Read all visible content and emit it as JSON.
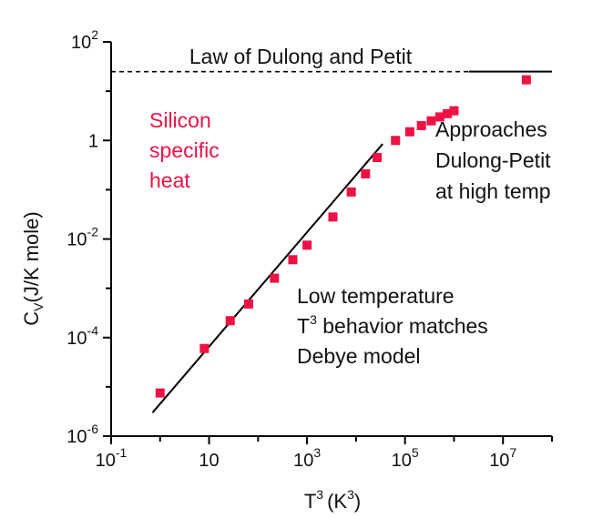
{
  "chart_data": {
    "type": "scatter",
    "x_scale": "log",
    "y_scale": "log",
    "xlim": [
      0.1,
      100000000
    ],
    "ylim": [
      1e-06,
      100
    ],
    "grid": false,
    "xlabel": {
      "base": "T",
      "exp": "3",
      "unit_base": "(K",
      "unit_exp": "3",
      "unit_close": ")"
    },
    "ylabel": {
      "base": "C",
      "sub": "V",
      "rest": "(J/K mole)"
    },
    "x_ticks": [
      {
        "value": 0.1,
        "base": "10",
        "exp": "-1"
      },
      {
        "value": 10,
        "base": "10",
        "exp": ""
      },
      {
        "value": 1000,
        "base": "10",
        "exp": "3"
      },
      {
        "value": 100000,
        "base": "10",
        "exp": "5"
      },
      {
        "value": 10000000,
        "base": "10",
        "exp": "7"
      }
    ],
    "x_minor_ticks": [
      1,
      100,
      10000,
      1000000,
      100000000
    ],
    "y_ticks": [
      {
        "value": 100,
        "base": "10",
        "exp": "2"
      },
      {
        "value": 1,
        "base": "1",
        "exp": ""
      },
      {
        "value": 0.01,
        "base": "10",
        "exp": "-2"
      },
      {
        "value": 0.0001,
        "base": "10",
        "exp": "-4"
      },
      {
        "value": 1e-06,
        "base": "10",
        "exp": "-6"
      }
    ],
    "y_minor_ticks": [
      10,
      0.1,
      0.001,
      1e-05
    ],
    "series": [
      {
        "name": "Silicon specific heat",
        "color": "#ee1144",
        "marker": "square",
        "points": [
          [
            1.0,
            7.5e-06
          ],
          [
            8.0,
            6e-05
          ],
          [
            27,
            0.00022
          ],
          [
            64,
            0.00048
          ],
          [
            216,
            0.0016
          ],
          [
            512,
            0.0038
          ],
          [
            1000,
            0.0075
          ],
          [
            3375,
            0.028
          ],
          [
            8000,
            0.09
          ],
          [
            15625,
            0.21
          ],
          [
            27000,
            0.45
          ],
          [
            64000,
            1.0
          ],
          [
            125000,
            1.5
          ],
          [
            216000,
            2.0
          ],
          [
            343000,
            2.5
          ],
          [
            512000,
            3.0
          ],
          [
            729000,
            3.5
          ],
          [
            1000000,
            4.0
          ],
          [
            30000000,
            17
          ]
        ]
      }
    ],
    "lines": [
      {
        "name": "T3 fit",
        "style": "solid",
        "color": "#000000",
        "points": [
          [
            0.7,
            3e-06
          ],
          [
            35000,
            0.85
          ]
        ]
      },
      {
        "name": "Dulong-Petit",
        "style": "dashed",
        "color": "#000000",
        "points": [
          [
            0.1,
            24.9
          ],
          [
            2000000,
            24.9
          ]
        ]
      },
      {
        "name": "Dulong-Petit",
        "style": "solid",
        "color": "#000000",
        "points": [
          [
            2000000,
            24.9
          ],
          [
            100000000,
            24.9
          ]
        ]
      }
    ],
    "annotations": {
      "law": "Law of Dulong and Petit",
      "silicon": [
        "Silicon",
        "specific",
        "heat"
      ],
      "approaches": [
        "Approaches",
        "Dulong-Petit",
        "at high temp"
      ],
      "low_temp_line1": "Low temperature",
      "low_temp_line2_sup": "3",
      "low_temp_line2_rest": " behavior matches",
      "low_temp_line2_base": "T",
      "low_temp_line3": "Debye model"
    },
    "colors": {
      "axis": "#000000",
      "text": "#111111",
      "data": "#ee1144"
    }
  }
}
